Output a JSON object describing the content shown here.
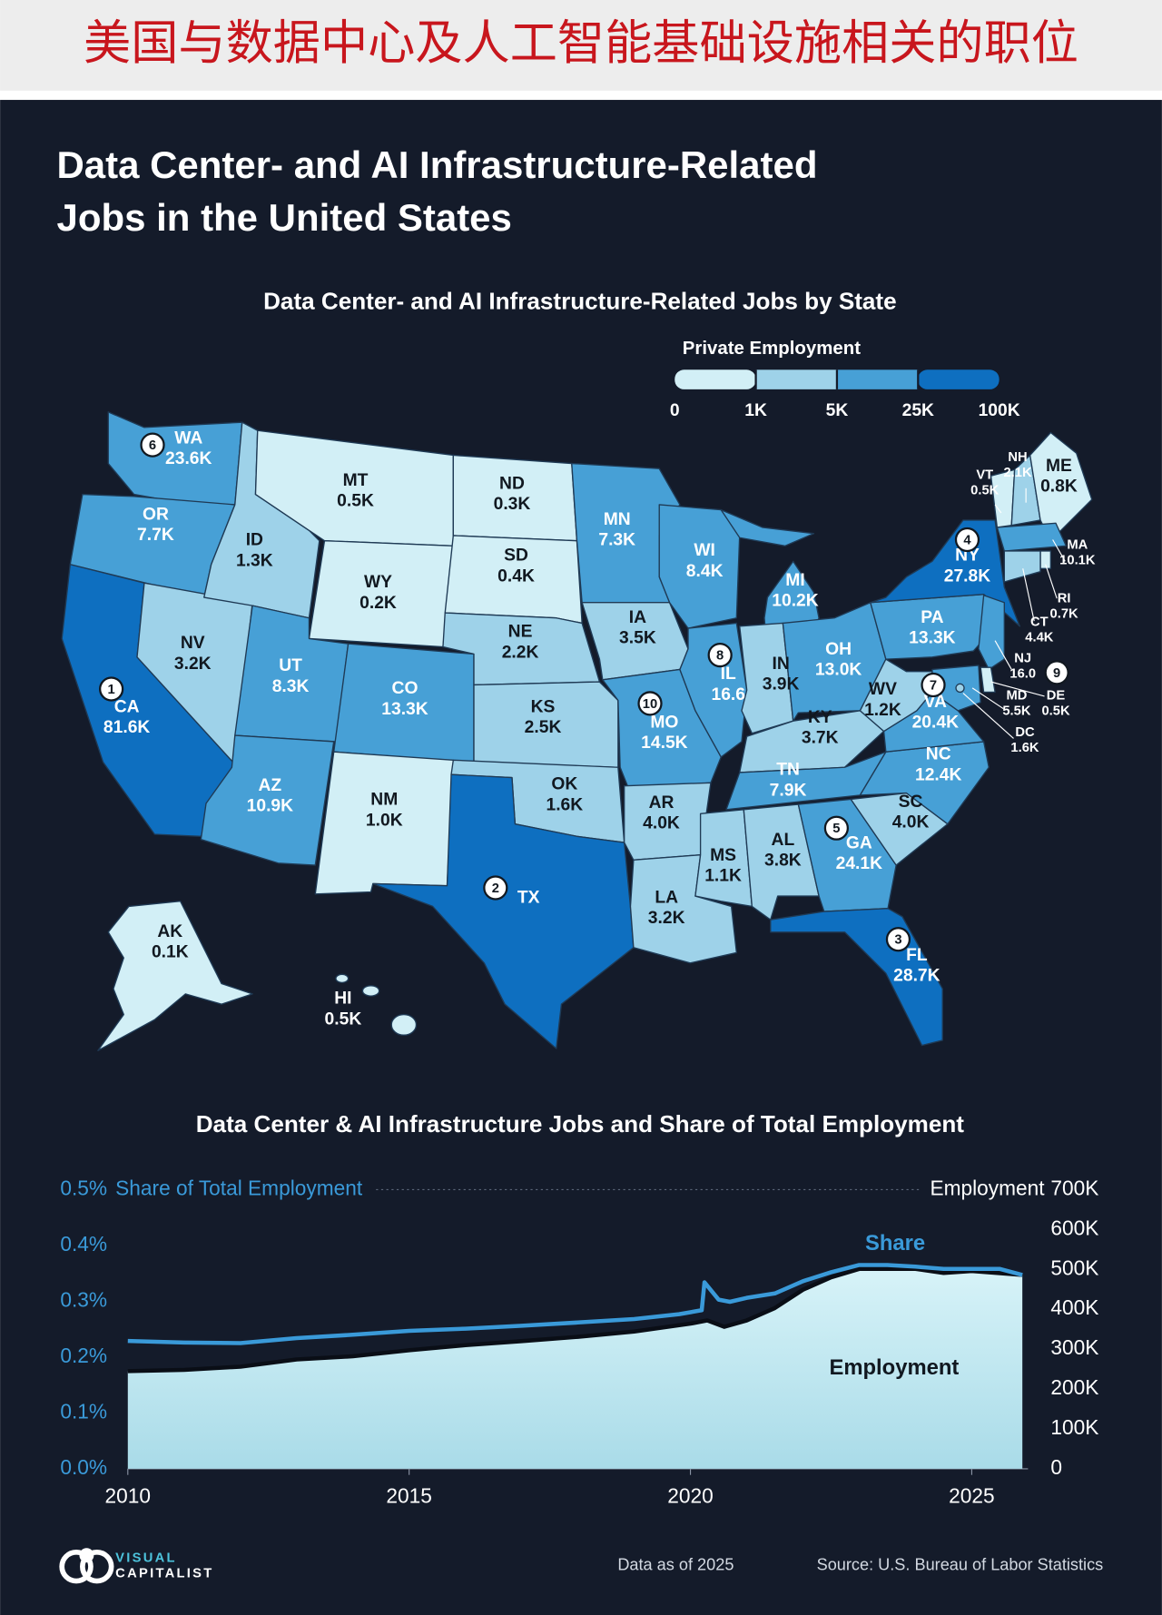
{
  "header": {
    "title": "美国与数据中心及人工智能基础设施相关的职位"
  },
  "title": {
    "lines": [
      "Data Center- and AI Infrastructure-Related",
      "Jobs in the United States"
    ]
  },
  "map": {
    "title": "Data Center- and AI Infrastructure-Related Jobs by State",
    "legend": {
      "title": "Private Employment",
      "labels": [
        "0",
        "1K",
        "5K",
        "25K",
        "100K"
      ],
      "colors": [
        "#d2eff6",
        "#9ed2e9",
        "#47a0d6",
        "#0e6fc0"
      ]
    },
    "states": [
      {
        "abbr": "WA",
        "value": "23.6K",
        "color": "#47a0d6",
        "rank": 6
      },
      {
        "abbr": "OR",
        "value": "7.7K",
        "color": "#47a0d6"
      },
      {
        "abbr": "CA",
        "value": "81.6K",
        "color": "#0e6fc0",
        "rank": 1
      },
      {
        "abbr": "NV",
        "value": "3.2K",
        "color": "#9ed2e9"
      },
      {
        "abbr": "ID",
        "value": "1.3K",
        "color": "#9ed2e9"
      },
      {
        "abbr": "MT",
        "value": "0.5K",
        "color": "#d2eff6"
      },
      {
        "abbr": "WY",
        "value": "0.2K",
        "color": "#d2eff6"
      },
      {
        "abbr": "UT",
        "value": "8.3K",
        "color": "#47a0d6"
      },
      {
        "abbr": "CO",
        "value": "13.3K",
        "color": "#47a0d6"
      },
      {
        "abbr": "AZ",
        "value": "10.9K",
        "color": "#47a0d6"
      },
      {
        "abbr": "NM",
        "value": "1.0K",
        "color": "#d2eff6"
      },
      {
        "abbr": "ND",
        "value": "0.3K",
        "color": "#d2eff6"
      },
      {
        "abbr": "SD",
        "value": "0.4K",
        "color": "#d2eff6"
      },
      {
        "abbr": "NE",
        "value": "2.2K",
        "color": "#9ed2e9"
      },
      {
        "abbr": "KS",
        "value": "2.5K",
        "color": "#9ed2e9"
      },
      {
        "abbr": "OK",
        "value": "1.6K",
        "color": "#9ed2e9"
      },
      {
        "abbr": "TX",
        "color": "#0e6fc0",
        "rank": 2
      },
      {
        "abbr": "MN",
        "value": "7.3K",
        "color": "#47a0d6"
      },
      {
        "abbr": "IA",
        "value": "3.5K",
        "color": "#9ed2e9"
      },
      {
        "abbr": "MO",
        "value": "14.5K",
        "color": "#47a0d6",
        "rank": 10
      },
      {
        "abbr": "AR",
        "value": "4.0K",
        "color": "#9ed2e9"
      },
      {
        "abbr": "LA",
        "value": "3.2K",
        "color": "#9ed2e9"
      },
      {
        "abbr": "WI",
        "value": "8.4K",
        "color": "#47a0d6"
      },
      {
        "abbr": "IL",
        "value": "16.6",
        "color": "#47a0d6",
        "rank": 8
      },
      {
        "abbr": "MI",
        "value": "10.2K",
        "color": "#47a0d6"
      },
      {
        "abbr": "IN",
        "value": "3.9K",
        "color": "#9ed2e9"
      },
      {
        "abbr": "OH",
        "value": "13.0K",
        "color": "#47a0d6"
      },
      {
        "abbr": "KY",
        "value": "3.7K",
        "color": "#9ed2e9"
      },
      {
        "abbr": "TN",
        "value": "7.9K",
        "color": "#47a0d6"
      },
      {
        "abbr": "MS",
        "value": "1.1K",
        "color": "#9ed2e9"
      },
      {
        "abbr": "AL",
        "value": "3.8K",
        "color": "#9ed2e9"
      },
      {
        "abbr": "GA",
        "value": "24.1K",
        "color": "#47a0d6",
        "rank": 5
      },
      {
        "abbr": "FL",
        "value": "28.7K",
        "color": "#0e6fc0",
        "rank": 3
      },
      {
        "abbr": "SC",
        "value": "4.0K",
        "color": "#9ed2e9"
      },
      {
        "abbr": "NC",
        "value": "12.4K",
        "color": "#47a0d6"
      },
      {
        "abbr": "VA",
        "value": "20.4K",
        "color": "#47a0d6",
        "rank": 7
      },
      {
        "abbr": "WV",
        "value": "1.2K",
        "color": "#9ed2e9"
      },
      {
        "abbr": "PA",
        "value": "13.3K",
        "color": "#47a0d6"
      },
      {
        "abbr": "NY",
        "value": "27.8K",
        "color": "#0e6fc0",
        "rank": 4
      },
      {
        "abbr": "VT",
        "value": "0.5K",
        "color": "#d2eff6"
      },
      {
        "abbr": "NH",
        "value": "2.1K",
        "color": "#9ed2e9"
      },
      {
        "abbr": "ME",
        "value": "0.8K",
        "color": "#d2eff6"
      },
      {
        "abbr": "MA",
        "value": "10.1K",
        "color": "#47a0d6"
      },
      {
        "abbr": "RI",
        "value": "0.7K",
        "color": "#d2eff6"
      },
      {
        "abbr": "CT",
        "value": "4.4K",
        "color": "#9ed2e9"
      },
      {
        "abbr": "NJ",
        "value": "16.0",
        "color": "#47a0d6",
        "rank": 9
      },
      {
        "abbr": "DE",
        "value": "0.5K",
        "color": "#d2eff6"
      },
      {
        "abbr": "MD",
        "value": "5.5K",
        "color": "#47a0d6"
      },
      {
        "abbr": "DC",
        "value": "1.6K",
        "color": "#9ed2e9"
      },
      {
        "abbr": "AK",
        "value": "0.1K",
        "color": "#d2eff6"
      },
      {
        "abbr": "HI",
        "value": "0.5K",
        "color": "#d2eff6"
      }
    ]
  },
  "chart_data": {
    "type": "line",
    "title": "Data Center & AI Infrastructure Jobs and Share of Total Employment",
    "y_label": "Share of Total Employment",
    "y2_label": "Employment",
    "xlim": [
      2010,
      2026
    ],
    "xticks": [
      2010,
      2015,
      2020,
      2025
    ],
    "ylim": [
      0,
      0.5
    ],
    "yticks": [
      {
        "value": 0,
        "label": "0.0%"
      },
      {
        "value": 0.1,
        "label": "0.1%"
      },
      {
        "value": 0.2,
        "label": "0.2%"
      },
      {
        "value": 0.3,
        "label": "0.3%"
      },
      {
        "value": 0.4,
        "label": "0.4%"
      },
      {
        "value": 0.5,
        "label": "0.5%"
      }
    ],
    "y2lim": [
      0,
      700000
    ],
    "y2ticks": [
      0,
      {
        "value": 100000,
        "label": "100K"
      },
      {
        "value": 200000,
        "label": "200K"
      },
      {
        "value": 300000,
        "label": "300K"
      },
      {
        "value": 400000,
        "label": "400K"
      },
      {
        "value": 500000,
        "label": "500K"
      },
      {
        "value": 600000,
        "label": "600K"
      },
      {
        "value": 700000,
        "label": "700K"
      }
    ],
    "series": [
      {
        "name": "Share",
        "color": "#3a9ad9",
        "axis": "y",
        "x": [
          2010,
          2011,
          2012,
          2013,
          2014,
          2015,
          2016,
          2017,
          2018,
          2019,
          2019.8,
          2020.2,
          2020.25,
          2020.5,
          2020.7,
          2021,
          2021.5,
          2022,
          2022.5,
          2023,
          2023.5,
          2024,
          2024.5,
          2025,
          2025.5,
          2025.9
        ],
        "values": [
          0.229,
          0.226,
          0.225,
          0.234,
          0.24,
          0.247,
          0.251,
          0.256,
          0.262,
          0.268,
          0.277,
          0.284,
          0.334,
          0.303,
          0.299,
          0.306,
          0.314,
          0.336,
          0.352,
          0.365,
          0.365,
          0.362,
          0.358,
          0.358,
          0.358,
          0.347
        ]
      },
      {
        "name": "Employment",
        "color": "#c9edf4",
        "axis": "y2",
        "x": [
          2010,
          2011,
          2012,
          2013,
          2014,
          2015,
          2016,
          2017,
          2018,
          2019,
          2020,
          2020.3,
          2020.6,
          2021,
          2021.5,
          2022,
          2022.5,
          2023,
          2024,
          2024.5,
          2025,
          2025.9
        ],
        "values": [
          245000,
          248000,
          256000,
          274000,
          282000,
          297000,
          310000,
          320000,
          331000,
          344000,
          364000,
          372000,
          356000,
          372000,
          403000,
          449000,
          480000,
          501000,
          501000,
          491000,
          496000,
          486000
        ]
      }
    ],
    "annotations": [
      {
        "text": "Share",
        "series": 0
      },
      {
        "text": "Employment",
        "series": 1
      }
    ]
  },
  "footer": {
    "brand_top": "VISUAL",
    "brand_bottom": "CAPITALIST",
    "note": "Data as of 2025",
    "source": "Source: U.S. Bureau of Labor Statistics"
  }
}
